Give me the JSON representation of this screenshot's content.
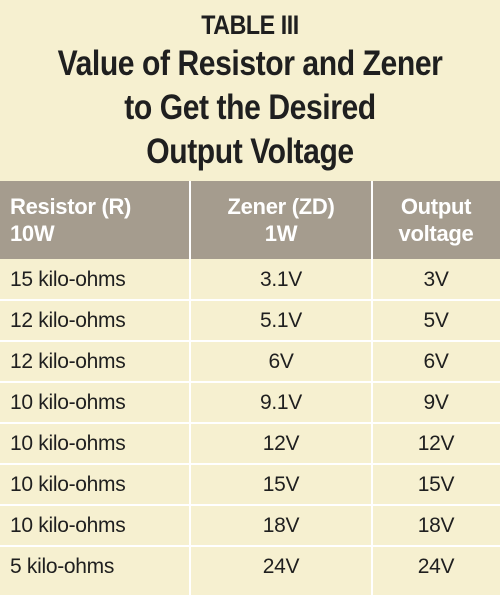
{
  "table": {
    "label": "TABLE III",
    "title_lines": [
      "Value of Resistor and Zener",
      "to Get the Desired",
      "Output Voltage"
    ],
    "headers": [
      {
        "line1": "Resistor (R)",
        "line2": "10W"
      },
      {
        "line1": "Zener (ZD)",
        "line2": "1W"
      },
      {
        "line1": "Output",
        "line2": "voltage"
      }
    ],
    "rows": [
      [
        "15 kilo-ohms",
        "3.1V",
        "3V"
      ],
      [
        "12 kilo-ohms",
        "5.1V",
        "5V"
      ],
      [
        "12 kilo-ohms",
        "6V",
        "6V"
      ],
      [
        "10 kilo-ohms",
        "9.1V",
        "9V"
      ],
      [
        "10 kilo-ohms",
        "12V",
        "12V"
      ],
      [
        "10 kilo-ohms",
        "15V",
        "15V"
      ],
      [
        "10 kilo-ohms",
        "18V",
        "18V"
      ],
      [
        "5 kilo-ohms",
        "24V",
        "24V"
      ]
    ]
  },
  "colors": {
    "background": "#f6f0d0",
    "header_background": "#a59c8e",
    "header_text": "#ffffff",
    "body_text": "#1f1f1f",
    "grid_lines": "#ffffff"
  }
}
